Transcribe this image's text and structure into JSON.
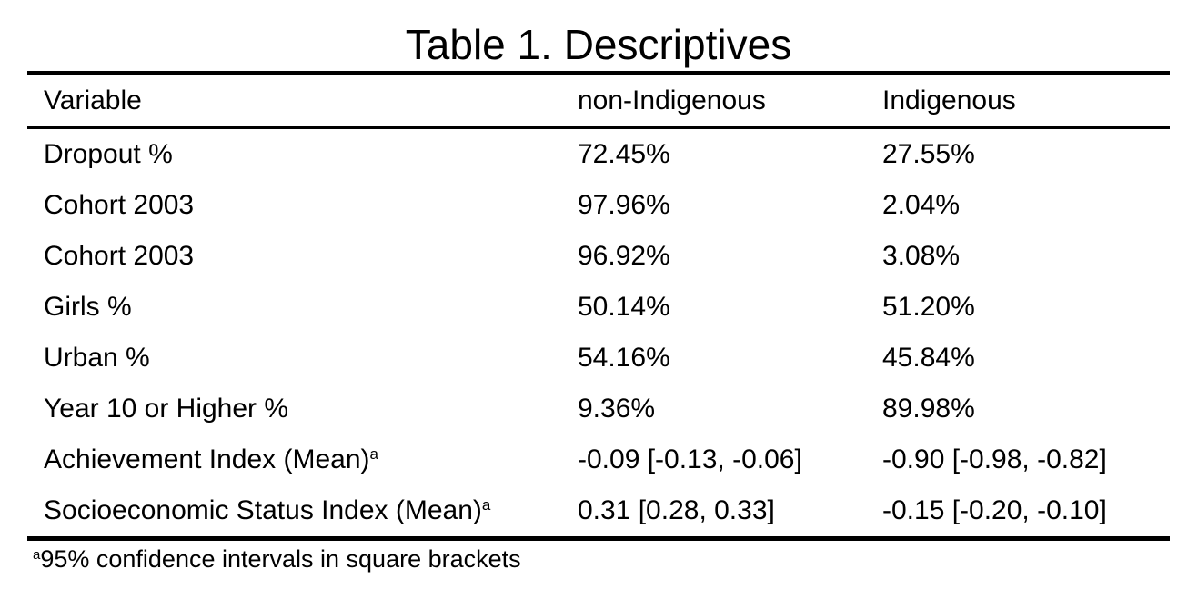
{
  "table": {
    "title": "Table 1. Descriptives",
    "headers": [
      "Variable",
      "non-Indigenous",
      "Indigenous"
    ],
    "rows": [
      {
        "variable": "Dropout %",
        "sup": "",
        "non_indigenous": "72.45%",
        "indigenous": "27.55%"
      },
      {
        "variable": "Cohort 2003",
        "sup": "",
        "non_indigenous": "97.96%",
        "indigenous": "2.04%"
      },
      {
        "variable": "Cohort 2003",
        "sup": "",
        "non_indigenous": "96.92%",
        "indigenous": "3.08%"
      },
      {
        "variable": "Girls %",
        "sup": "",
        "non_indigenous": "50.14%",
        "indigenous": "51.20%"
      },
      {
        "variable": "Urban %",
        "sup": "",
        "non_indigenous": "54.16%",
        "indigenous": "45.84%"
      },
      {
        "variable": "Year 10 or Higher %",
        "sup": "",
        "non_indigenous": "9.36%",
        "indigenous": "89.98%"
      },
      {
        "variable": "Achievement Index (Mean)",
        "sup": "a",
        "non_indigenous": "-0.09 [-0.13, -0.06]",
        "indigenous": "-0.90 [-0.98, -0.82]"
      },
      {
        "variable": "Socioeconomic Status Index (Mean)",
        "sup": "a",
        "non_indigenous": "0.31 [0.28, 0.33]",
        "indigenous": "-0.15 [-0.20, -0.10]"
      }
    ],
    "note": {
      "marker": "a",
      "text": "95% confidence intervals in square brackets"
    }
  }
}
